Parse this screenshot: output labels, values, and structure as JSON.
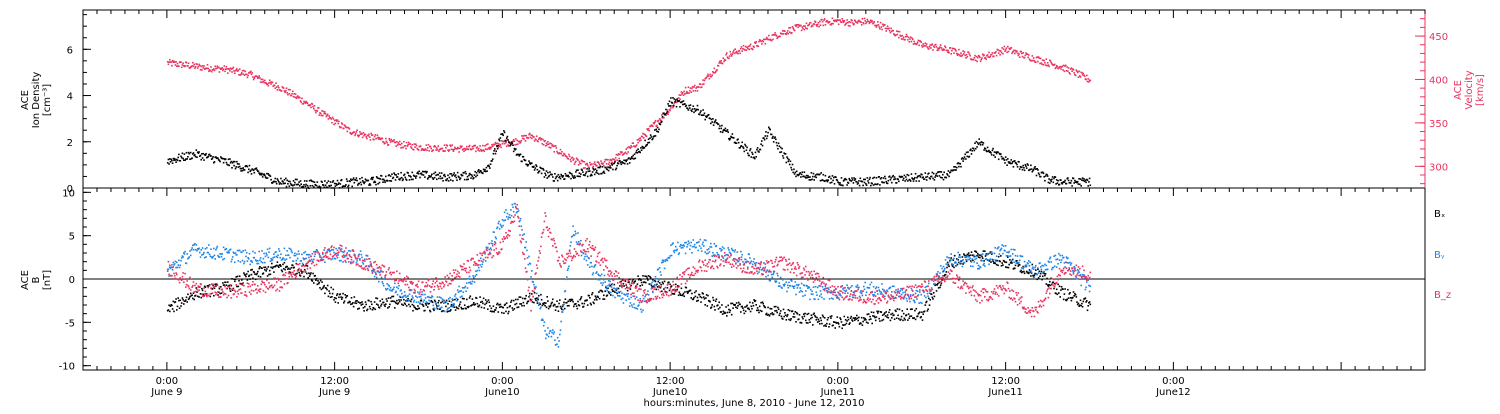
{
  "chart_data": [
    {
      "type": "scatter",
      "panel": "top",
      "ylabel_left": [
        "ACE",
        "Ion Density",
        "[cm⁻³]"
      ],
      "ylabel_right": [
        "ACE",
        "Velocity",
        "[km/s]"
      ],
      "ylim_left": [
        0,
        7.7
      ],
      "ylim_right": [
        275,
        480
      ],
      "yticks_left": [
        "0",
        "2",
        "4",
        "6"
      ],
      "yticks_right": [
        "300",
        "350",
        "400",
        "450"
      ],
      "series": [
        {
          "name": "",
          "axis": "left",
          "color": "#000000",
          "x": [
            0.0,
            2.0,
            4.0,
            6.0,
            8.0,
            10.0,
            12.0,
            13.5,
            14.5,
            16.0,
            18.0,
            20.0,
            22.0,
            23.0,
            24.0,
            25.0,
            26.0,
            27.5,
            29.0,
            31.0,
            33.0,
            35.0,
            36.0,
            38.0,
            40.0,
            42.0,
            43.0,
            45.0,
            47.0,
            48.0,
            50.0,
            52.0,
            54.0,
            56.0,
            58.0,
            60.0,
            62.0,
            63.0,
            64.0,
            66.0
          ],
          "y": [
            1.2,
            1.5,
            1.2,
            0.8,
            0.3,
            0.2,
            0.2,
            0.3,
            0.3,
            0.5,
            0.6,
            0.5,
            0.6,
            1.0,
            2.4,
            1.5,
            1.0,
            0.5,
            0.6,
            0.8,
            1.2,
            2.5,
            3.8,
            3.4,
            2.4,
            1.4,
            2.5,
            0.6,
            0.5,
            0.3,
            0.3,
            0.4,
            0.5,
            0.6,
            2.0,
            1.2,
            0.8,
            0.4,
            0.3,
            0.3
          ]
        },
        {
          "name": "",
          "axis": "right",
          "color": "#e8335f",
          "x": [
            0.0,
            1.0,
            2.0,
            3.0,
            4.0,
            5.0,
            6.0,
            7.0,
            8.0,
            9.0,
            10.0,
            11.0,
            12.0,
            13.0,
            14.0,
            15.0,
            16.0,
            17.0,
            18.0,
            19.0,
            20.0,
            21.0,
            22.0,
            23.0,
            24.0,
            25.0,
            26.0,
            27.0,
            28.0,
            29.0,
            30.0,
            31.0,
            32.0,
            33.0,
            34.0,
            35.0,
            36.0,
            37.0,
            38.0,
            39.0,
            40.0,
            41.0,
            42.0,
            43.0,
            44.0,
            45.0,
            46.0,
            47.0,
            48.0,
            49.0,
            50.0,
            51.0,
            52.0,
            53.0,
            54.0,
            55.0,
            56.0,
            57.0,
            58.0,
            59.0,
            60.0,
            61.0,
            62.0,
            63.0,
            64.0,
            65.0,
            66.0
          ],
          "y": [
            420,
            418,
            416,
            414,
            413,
            410,
            406,
            398,
            392,
            383,
            373,
            362,
            352,
            342,
            337,
            333,
            328,
            325,
            323,
            322,
            322,
            321,
            321,
            323,
            327,
            330,
            336,
            328,
            318,
            308,
            301,
            303,
            310,
            320,
            335,
            352,
            368,
            388,
            392,
            410,
            428,
            435,
            440,
            448,
            455,
            460,
            463,
            467,
            468,
            466,
            468,
            463,
            455,
            448,
            440,
            438,
            434,
            430,
            425,
            430,
            436,
            430,
            425,
            420,
            415,
            408,
            400
          ]
        }
      ]
    },
    {
      "type": "scatter",
      "panel": "bottom",
      "ylabel_left": [
        "ACE",
        "B",
        "[nT]"
      ],
      "ylim": [
        -10.5,
        10.5
      ],
      "yticks": [
        "-10",
        "-5",
        "0",
        "5",
        "10"
      ],
      "x_axis": {
        "label": "hours:minutes, June  8, 2010 - June 12, 2010",
        "range_hours": [
          -6,
          90
        ],
        "ticks": [
          {
            "hour": 0,
            "time": "0:00",
            "date": "June 9"
          },
          {
            "hour": 12,
            "time": "12:00",
            "date": "June 9"
          },
          {
            "hour": 24,
            "time": "0:00",
            "date": "June10"
          },
          {
            "hour": 36,
            "time": "12:00",
            "date": "June10"
          },
          {
            "hour": 48,
            "time": "0:00",
            "date": "June11"
          },
          {
            "hour": 60,
            "time": "12:00",
            "date": "June11"
          },
          {
            "hour": 72,
            "time": "0:00",
            "date": "June12"
          }
        ]
      },
      "series": [
        {
          "name": "Bₓ",
          "color": "#000000",
          "x": [
            0.0,
            2.0,
            4.0,
            6.0,
            8.0,
            10.0,
            12.0,
            14.0,
            16.0,
            18.0,
            20.0,
            22.0,
            24.0,
            26.0,
            28.0,
            30.0,
            32.0,
            34.0,
            36.0,
            38.0,
            40.0,
            42.0,
            44.0,
            46.0,
            48.0,
            50.0,
            52.0,
            54.0,
            56.0,
            58.0,
            60.0,
            62.0,
            64.0,
            66.0
          ],
          "y": [
            -3.5,
            -1.5,
            -1.0,
            0.5,
            1.5,
            1.0,
            -2.0,
            -3.0,
            -2.5,
            -3.0,
            -3.0,
            -2.5,
            -3.5,
            -2.0,
            -3.0,
            -2.5,
            -1.0,
            0.0,
            -1.0,
            -2.0,
            -3.5,
            -3.0,
            -4.0,
            -4.5,
            -5.0,
            -4.5,
            -4.0,
            -4.0,
            2.0,
            3.0,
            2.0,
            1.0,
            -1.5,
            -3.0
          ]
        },
        {
          "name": "Bᵧ",
          "color": "#1f86e8",
          "x": [
            0.0,
            2.0,
            4.0,
            6.0,
            8.0,
            10.0,
            12.0,
            14.0,
            16.0,
            18.0,
            20.0,
            22.0,
            24.0,
            25.0,
            26.0,
            27.0,
            28.0,
            29.0,
            30.0,
            32.0,
            34.0,
            36.0,
            38.0,
            40.0,
            42.0,
            44.0,
            46.0,
            48.0,
            50.0,
            52.0,
            54.0,
            56.0,
            58.0,
            60.0,
            62.0,
            64.0,
            66.0
          ],
          "y": [
            1.0,
            3.5,
            3.0,
            2.5,
            3.0,
            2.5,
            3.0,
            2.5,
            -1.0,
            -2.0,
            -3.0,
            0.5,
            7.0,
            8.5,
            1.0,
            -6.0,
            -7.0,
            6.0,
            2.0,
            -1.5,
            -3.0,
            3.5,
            4.0,
            3.0,
            2.0,
            -0.5,
            -1.5,
            -1.5,
            -1.0,
            -1.5,
            -2.0,
            2.5,
            2.0,
            3.5,
            1.0,
            2.5,
            -1.0
          ]
        },
        {
          "name": "B_z",
          "color": "#e8335f",
          "x": [
            0.0,
            2.0,
            4.0,
            6.0,
            8.0,
            10.0,
            12.0,
            14.0,
            16.0,
            18.0,
            20.0,
            22.0,
            24.0,
            25.0,
            26.0,
            27.0,
            28.0,
            30.0,
            32.0,
            34.0,
            36.0,
            38.0,
            40.0,
            42.0,
            44.0,
            46.0,
            48.0,
            50.0,
            52.0,
            54.0,
            56.0,
            58.0,
            60.0,
            62.0,
            64.0,
            66.0
          ],
          "y": [
            1.5,
            -1.0,
            -1.5,
            -1.0,
            -0.5,
            2.0,
            3.5,
            2.0,
            0.5,
            -1.0,
            0.0,
            2.0,
            4.0,
            8.0,
            -3.0,
            7.0,
            2.0,
            4.0,
            0.5,
            -2.0,
            -1.0,
            1.5,
            2.5,
            1.0,
            2.0,
            0.5,
            -1.5,
            -2.0,
            -2.0,
            -1.0,
            0.5,
            -2.0,
            -1.0,
            -4.0,
            1.5,
            0.5
          ]
        }
      ]
    }
  ]
}
